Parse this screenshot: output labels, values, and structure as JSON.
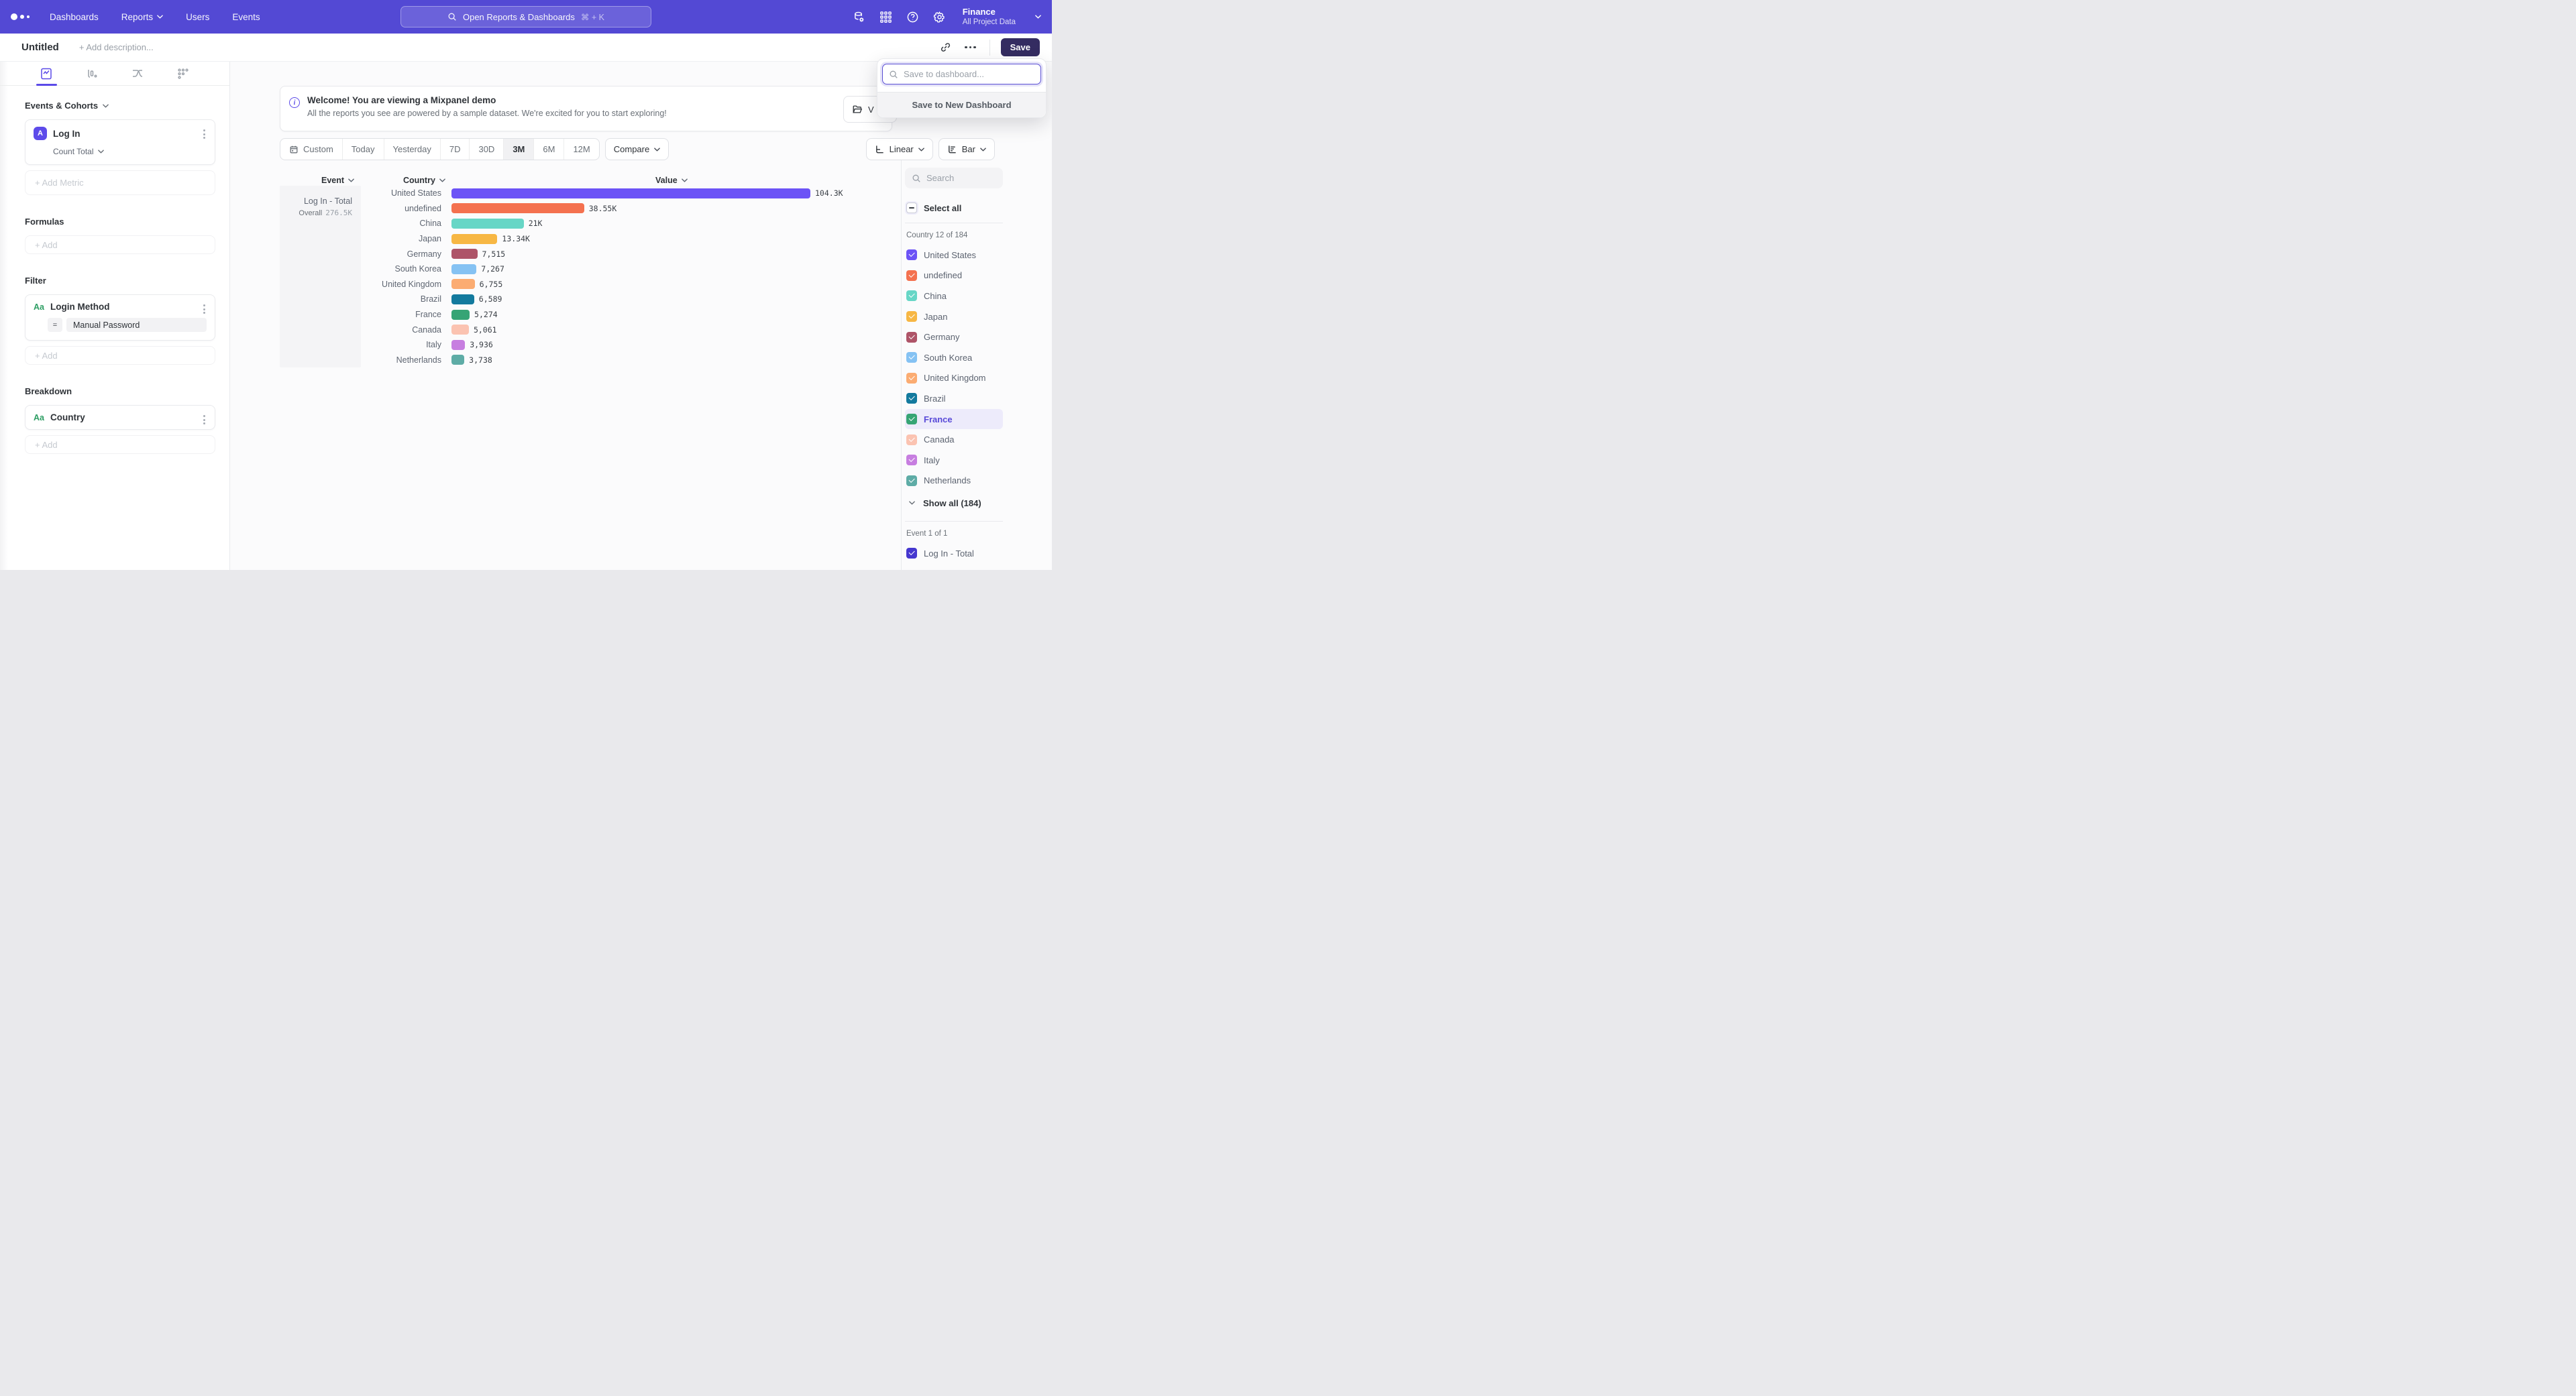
{
  "nav": {
    "items": [
      "Dashboards",
      "Reports",
      "Users",
      "Events"
    ],
    "search_placeholder": "Open Reports & Dashboards",
    "search_shortcut": "⌘ + K",
    "project_name": "Finance",
    "project_subtitle": "All Project Data"
  },
  "title_bar": {
    "title": "Untitled",
    "description_placeholder": "+ Add description...",
    "save_label": "Save"
  },
  "save_popup": {
    "input_placeholder": "Save to dashboard...",
    "new_dashboard_label": "Save to New Dashboard"
  },
  "sidebar": {
    "events_header": "Events & Cohorts",
    "metric": {
      "badge": "A",
      "name": "Log In",
      "aggregation": "Count Total"
    },
    "add_metric_label": "+ Add Metric",
    "formulas_header": "Formulas",
    "formulas_add_label": "+ Add",
    "filter_header": "Filter",
    "filter": {
      "icon": "Aa",
      "name": "Login Method",
      "operator": "=",
      "value": "Manual Password"
    },
    "filter_add_label": "+ Add",
    "breakdown_header": "Breakdown",
    "breakdown": {
      "icon": "Aa",
      "name": "Country"
    },
    "breakdown_add_label": "+ Add"
  },
  "banner": {
    "title": "Welcome! You are viewing a Mixpanel demo",
    "subtitle": "All the reports you see are powered by a sample dataset. We're excited for you to start exploring!",
    "partial_button_text": "V"
  },
  "controls": {
    "ranges": [
      "Custom",
      "Today",
      "Yesterday",
      "7D",
      "30D",
      "3M",
      "6M",
      "12M"
    ],
    "selected_range": "3M",
    "compare_label": "Compare",
    "line_mode_label": "Linear",
    "chart_type_label": "Bar"
  },
  "chart_data": {
    "type": "bar",
    "orientation": "horizontal",
    "title": "Log In events by Country, last 3 months",
    "headers": {
      "event": "Event",
      "country": "Country",
      "value": "Value"
    },
    "event_cell": {
      "name": "Log In - Total",
      "overall_label": "Overall",
      "overall_value": "276.5K"
    },
    "categories": [
      "United States",
      "undefined",
      "China",
      "Japan",
      "Germany",
      "South Korea",
      "United Kingdom",
      "Brazil",
      "France",
      "Canada",
      "Italy",
      "Netherlands"
    ],
    "values": [
      104300,
      38550,
      21000,
      13340,
      7515,
      7267,
      6755,
      6589,
      5274,
      5061,
      3936,
      3738
    ],
    "display_values": [
      "104.3K",
      "38.55K",
      "21K",
      "13.34K",
      "7,515",
      "7,267",
      "6,755",
      "6,589",
      "5,274",
      "5,061",
      "3,936",
      "3,738"
    ],
    "colors": [
      "#6C53F6",
      "#F4714F",
      "#67D6C6",
      "#F7B744",
      "#AE5468",
      "#85C2F3",
      "#FBAC72",
      "#137A9E",
      "#36A475",
      "#FBC3B1",
      "#C77EE0",
      "#5EACA6"
    ],
    "xmax": 104300,
    "legend_position": "right",
    "grid": false
  },
  "legend": {
    "search_placeholder": "Search",
    "select_all_label": "Select all",
    "country_header": "Country 12 of 184",
    "items": [
      {
        "label": "United States",
        "color": "#6C53F6",
        "checked": true,
        "highlighted": false
      },
      {
        "label": "undefined",
        "color": "#F4714F",
        "checked": true,
        "highlighted": false
      },
      {
        "label": "China",
        "color": "#67D6C6",
        "checked": true,
        "highlighted": false
      },
      {
        "label": "Japan",
        "color": "#F7B744",
        "checked": true,
        "highlighted": false
      },
      {
        "label": "Germany",
        "color": "#AE5468",
        "checked": true,
        "highlighted": false
      },
      {
        "label": "South Korea",
        "color": "#85C2F3",
        "checked": true,
        "highlighted": false
      },
      {
        "label": "United Kingdom",
        "color": "#FBAC72",
        "checked": true,
        "highlighted": false
      },
      {
        "label": "Brazil",
        "color": "#137A9E",
        "checked": true,
        "highlighted": false
      },
      {
        "label": "France",
        "color": "#36A475",
        "checked": true,
        "highlighted": true
      },
      {
        "label": "Canada",
        "color": "#FBC3B1",
        "checked": true,
        "highlighted": false
      },
      {
        "label": "Italy",
        "color": "#C77EE0",
        "checked": true,
        "highlighted": false
      },
      {
        "label": "Netherlands",
        "color": "#5EACA6",
        "checked": true,
        "highlighted": false
      }
    ],
    "show_all_label": "Show all (184)",
    "event_header": "Event 1 of 1",
    "event_item": {
      "label": "Log In - Total",
      "color": "#4537CF",
      "checked": true
    }
  },
  "colors": {
    "accent": "#5349D4",
    "save_button": "#342C61",
    "highlight_row": "#EDEBFB"
  }
}
